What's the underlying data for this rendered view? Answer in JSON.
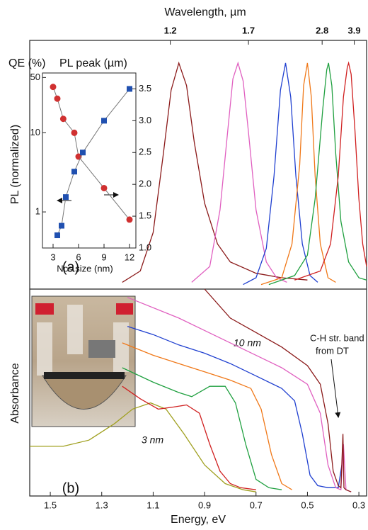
{
  "chart_data": [
    {
      "type": "line",
      "ylabel": "PL (normalized)",
      "x2label": "Wavelength, µm",
      "xlim": [
        1.58,
        0.27
      ],
      "ylim": [
        0,
        1.1
      ],
      "x2ticks": [
        1.2,
        1.7,
        2.8,
        3.9
      ],
      "annotations": [
        "(a)"
      ],
      "series": [
        {
          "color": "#8b1a1a",
          "x": [
            1.22,
            1.15,
            1.1,
            1.06,
            1.03,
            1.0,
            0.97,
            0.94,
            0.9,
            0.85,
            0.8,
            0.7,
            0.6,
            0.5
          ],
          "values": [
            0.03,
            0.08,
            0.25,
            0.6,
            0.88,
            1,
            0.9,
            0.65,
            0.38,
            0.2,
            0.12,
            0.07,
            0.05,
            0.04
          ]
        },
        {
          "color": "#e060c0",
          "x": [
            0.95,
            0.88,
            0.84,
            0.81,
            0.79,
            0.77,
            0.75,
            0.73,
            0.7,
            0.66,
            0.62,
            0.58
          ],
          "values": [
            0.03,
            0.1,
            0.35,
            0.7,
            0.93,
            1,
            0.92,
            0.7,
            0.35,
            0.12,
            0.05,
            0.03
          ]
        },
        {
          "color": "#2040d0",
          "x": [
            0.75,
            0.7,
            0.66,
            0.63,
            0.605,
            0.585,
            0.565,
            0.545,
            0.52,
            0.49,
            0.46
          ],
          "values": [
            0.02,
            0.05,
            0.18,
            0.5,
            0.88,
            1,
            0.85,
            0.5,
            0.2,
            0.06,
            0.03
          ]
        },
        {
          "color": "#f07818",
          "x": [
            0.68,
            0.6,
            0.56,
            0.53,
            0.515,
            0.5,
            0.485,
            0.47,
            0.45,
            0.42,
            0.39
          ],
          "values": [
            0.02,
            0.05,
            0.2,
            0.55,
            0.9,
            1,
            0.85,
            0.5,
            0.2,
            0.05,
            0.03
          ]
        },
        {
          "color": "#20a040",
          "x": [
            0.65,
            0.55,
            0.5,
            0.47,
            0.44,
            0.425,
            0.418,
            0.405,
            0.39,
            0.37,
            0.34,
            0.3,
            0.27
          ],
          "values": [
            0.02,
            0.06,
            0.15,
            0.4,
            0.8,
            0.97,
            1,
            0.9,
            0.6,
            0.3,
            0.12,
            0.05,
            0.04
          ]
        },
        {
          "color": "#d02020",
          "x": [
            0.55,
            0.45,
            0.41,
            0.38,
            0.36,
            0.345,
            0.34,
            0.33,
            0.315,
            0.3,
            0.285,
            0.27
          ],
          "values": [
            0.04,
            0.08,
            0.2,
            0.5,
            0.85,
            0.98,
            1,
            0.95,
            0.7,
            0.4,
            0.2,
            0.1
          ]
        }
      ]
    },
    {
      "type": "scatter",
      "xlabel": "Ncs size (nm)",
      "xlim": [
        1.75,
        12.75
      ],
      "ylim": [
        0.35,
        57
      ],
      "ylog": true,
      "y2lim": [
        1.0,
        3.75
      ],
      "xticks": [
        3,
        6,
        9,
        12
      ],
      "yticks": [
        1,
        10,
        50
      ],
      "y2ticks": [
        {
          "value": 1.0,
          "label": "1.0"
        },
        1.5,
        {
          "value": 2.0,
          "label": "2.0"
        },
        2.5,
        {
          "value": 3.0,
          "label": "3.0"
        },
        3.5
      ],
      "fit_color": "#777777",
      "series": [
        {
          "name": "QE (%)",
          "color": "#d03030",
          "marker": "circle",
          "x": [
            3,
            3.5,
            4.2,
            5.5,
            6,
            9,
            12
          ],
          "values": [
            38,
            27,
            15,
            10,
            5,
            2,
            0.8
          ]
        },
        {
          "name": "PL peak (µm)",
          "color": "#2050b0",
          "marker": "square",
          "axis": "y2",
          "x": [
            3.5,
            4,
            4.5,
            5.5,
            6.5,
            9,
            12
          ],
          "values": [
            1.2,
            1.35,
            1.8,
            2.2,
            2.5,
            3.0,
            3.5
          ]
        }
      ]
    },
    {
      "type": "line",
      "ylabel": "Absorbance",
      "xlabel": "Energy, eV",
      "xlim": [
        1.58,
        0.27
      ],
      "ylim": [
        0,
        1
      ],
      "xticks": [
        1.5,
        1.3,
        1.1,
        0.9,
        0.7,
        0.5,
        0.3
      ],
      "annotations": [
        "(b)",
        "10 nm",
        "3 nm",
        "C-H str. band",
        "from DT"
      ],
      "series": [
        {
          "color": "#a0a020",
          "x": [
            1.58,
            1.45,
            1.35,
            1.25,
            1.18,
            1.11,
            1.05,
            0.98,
            0.9,
            0.82,
            0.75,
            0.7
          ],
          "values": [
            0.24,
            0.24,
            0.27,
            0.35,
            0.42,
            0.45,
            0.42,
            0.3,
            0.15,
            0.06,
            0.03,
            0.02
          ]
        },
        {
          "color": "#d02020",
          "x": [
            1.22,
            1.15,
            1.08,
            1.02,
            0.97,
            0.92,
            0.88,
            0.84,
            0.8,
            0.76,
            0.7
          ],
          "values": [
            0.53,
            0.47,
            0.42,
            0.43,
            0.44,
            0.4,
            0.25,
            0.12,
            0.06,
            0.04,
            0.03
          ]
        },
        {
          "color": "#20a040",
          "x": [
            1.22,
            1.1,
            1.0,
            0.95,
            0.88,
            0.82,
            0.78,
            0.74,
            0.7,
            0.65,
            0.6
          ],
          "values": [
            0.62,
            0.55,
            0.5,
            0.48,
            0.53,
            0.53,
            0.45,
            0.25,
            0.08,
            0.04,
            0.03
          ]
        },
        {
          "color": "#f07818",
          "x": [
            1.22,
            1.1,
            1.0,
            0.9,
            0.8,
            0.72,
            0.68,
            0.64,
            0.6,
            0.56
          ],
          "values": [
            0.74,
            0.68,
            0.64,
            0.6,
            0.56,
            0.52,
            0.42,
            0.2,
            0.06,
            0.03
          ]
        },
        {
          "color": "#2040d0",
          "x": [
            1.2,
            1.1,
            1.0,
            0.9,
            0.8,
            0.7,
            0.6,
            0.55,
            0.52,
            0.49,
            0.46,
            0.42,
            0.38,
            0.36
          ],
          "values": [
            0.82,
            0.78,
            0.73,
            0.69,
            0.64,
            0.58,
            0.52,
            0.46,
            0.3,
            0.1,
            0.05,
            0.04,
            0.04,
            0.2
          ]
        },
        {
          "color": "#e060c0",
          "x": [
            1.2,
            1.0,
            0.9,
            0.8,
            0.7,
            0.6,
            0.5,
            0.45,
            0.42,
            0.39,
            0.37,
            0.36,
            0.35,
            0.33
          ],
          "values": [
            0.96,
            0.86,
            0.8,
            0.74,
            0.68,
            0.62,
            0.54,
            0.4,
            0.15,
            0.04,
            0.03,
            0.25,
            0.03,
            0.02
          ]
        },
        {
          "color": "#8b1a1a",
          "x": [
            0.9,
            0.8,
            0.7,
            0.6,
            0.5,
            0.45,
            0.42,
            0.4,
            0.38,
            0.37,
            0.362,
            0.358,
            0.35,
            0.33
          ],
          "values": [
            1.0,
            0.86,
            0.79,
            0.72,
            0.63,
            0.54,
            0.35,
            0.12,
            0.05,
            0.04,
            0.3,
            0.04,
            0.03,
            0.02
          ]
        }
      ]
    }
  ]
}
